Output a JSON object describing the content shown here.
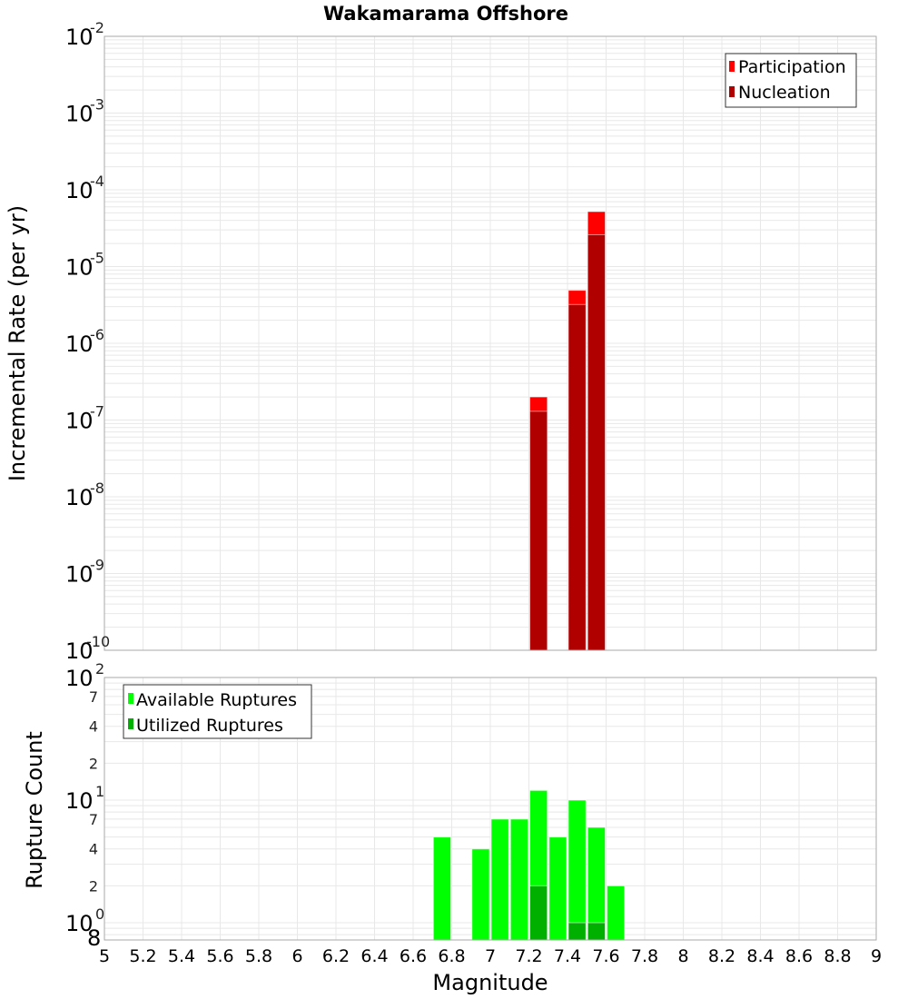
{
  "title": "Wakamarama Offshore",
  "colors": {
    "participation": "#ff0000",
    "nucleation": "#b00000",
    "available": "#00ff00",
    "utilized": "#00b000",
    "grid": "#e8e8e8",
    "frame": "#aaaaaa"
  },
  "chart_data": [
    {
      "type": "bar",
      "title": "Wakamarama Offshore",
      "xlabel": "Magnitude",
      "ylabel": "Incremental Rate (per yr)",
      "yscale": "log",
      "ylim": [
        1e-10,
        0.01
      ],
      "xlim": [
        5,
        9
      ],
      "y_tick_labels": [
        "10^-2",
        "10^-3",
        "10^-4",
        "10^-5",
        "10^-6",
        "10^-7",
        "10^-8",
        "10^-9",
        "10^-10"
      ],
      "legend": [
        "Participation",
        "Nucleation"
      ],
      "legend_position": "top-right",
      "grid": true,
      "x": [
        7.25,
        7.45,
        7.55
      ],
      "series": [
        {
          "name": "Participation",
          "color": "#ff0000",
          "values": [
            2e-07,
            4.9e-06,
            5.2e-05
          ]
        },
        {
          "name": "Nucleation",
          "color": "#b00000",
          "values": [
            1.3e-07,
            3.2e-06,
            2.6e-05
          ]
        }
      ]
    },
    {
      "type": "bar",
      "xlabel": "Magnitude",
      "ylabel": "Rupture Count",
      "yscale": "log",
      "ylim": [
        0.8,
        100
      ],
      "xlim": [
        5,
        9
      ],
      "y_tick_labels": [
        "10^2",
        "7",
        "4",
        "2",
        "10^1",
        "7",
        "4",
        "2",
        "10^0",
        "8"
      ],
      "legend": [
        "Available Ruptures",
        "Utilized Ruptures"
      ],
      "legend_position": "top-left",
      "grid": true,
      "x": [
        6.75,
        6.95,
        7.05,
        7.15,
        7.25,
        7.35,
        7.45,
        7.55,
        7.65
      ],
      "series": [
        {
          "name": "Available Ruptures",
          "color": "#00ff00",
          "values": [
            5,
            4,
            7,
            7,
            12,
            5,
            10,
            6,
            2
          ]
        },
        {
          "name": "Utilized Ruptures",
          "color": "#00b000",
          "values": [
            0,
            0,
            0,
            0,
            2,
            0,
            1,
            1,
            0
          ]
        }
      ]
    }
  ],
  "x_ticks": [
    "5",
    "5.2",
    "5.4",
    "5.6",
    "5.8",
    "6",
    "6.2",
    "6.4",
    "6.6",
    "6.8",
    "7",
    "7.2",
    "7.4",
    "7.6",
    "7.8",
    "8",
    "8.2",
    "8.4",
    "8.6",
    "8.8",
    "9"
  ],
  "labels": {
    "xlabel": "Magnitude",
    "top_ylabel": "Incremental Rate (per yr)",
    "bottom_ylabel": "Rupture Count",
    "legend_participation": "Participation",
    "legend_nucleation": "Nucleation",
    "legend_available": "Available Ruptures",
    "legend_utilized": "Utilized Ruptures"
  }
}
